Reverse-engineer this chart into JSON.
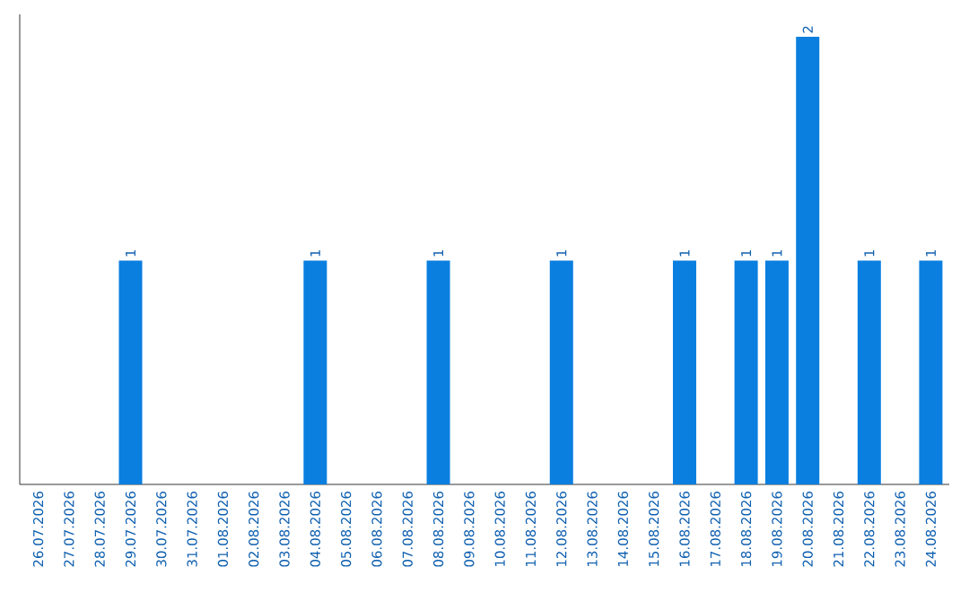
{
  "chart_data": {
    "type": "bar",
    "color": "#0a7fe0",
    "categories": [
      "26.07.2026",
      "27.07.2026",
      "28.07.2026",
      "29.07.2026",
      "30.07.2026",
      "31.07.2026",
      "01.08.2026",
      "02.08.2026",
      "03.08.2026",
      "04.08.2026",
      "05.08.2026",
      "06.08.2026",
      "07.08.2026",
      "08.08.2026",
      "09.08.2026",
      "10.08.2026",
      "11.08.2026",
      "12.08.2026",
      "13.08.2026",
      "14.08.2026",
      "15.08.2026",
      "16.08.2026",
      "17.08.2026",
      "18.08.2026",
      "19.08.2026",
      "20.08.2026",
      "21.08.2026",
      "22.08.2026",
      "23.08.2026",
      "24.08.2026"
    ],
    "values": [
      0,
      0,
      0,
      1,
      0,
      0,
      0,
      0,
      0,
      1,
      0,
      0,
      0,
      1,
      0,
      0,
      0,
      1,
      0,
      0,
      0,
      1,
      0,
      1,
      1,
      2,
      0,
      1,
      0,
      1
    ],
    "value_labels": [
      null,
      null,
      null,
      "1",
      null,
      null,
      null,
      null,
      null,
      "1",
      null,
      null,
      null,
      "1",
      null,
      null,
      null,
      "1",
      null,
      null,
      null,
      "1",
      null,
      "1",
      "1",
      "2",
      null,
      "1",
      null,
      "1"
    ],
    "ylim": [
      0,
      2.1
    ],
    "tick_labels": "x"
  }
}
